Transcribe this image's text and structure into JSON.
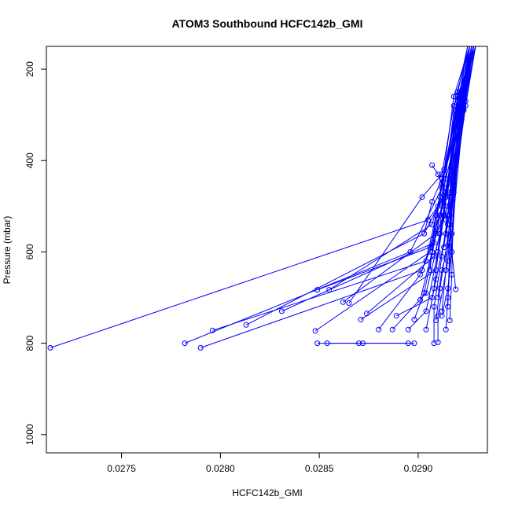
{
  "chart_data": {
    "type": "line",
    "title": "ATOM3 Southbound HCFC142b_GMI",
    "xlabel": "HCFC142b_GMI",
    "ylabel": "Pressure (mbar)",
    "xlim": [
      0.02712,
      0.02935
    ],
    "ylim": [
      1040,
      150
    ],
    "y_reversed": true,
    "x_ticks": [
      "0.0275",
      "0.0280",
      "0.0285",
      "0.0290"
    ],
    "x_tick_values": [
      0.0275,
      0.028,
      0.0285,
      0.029
    ],
    "y_ticks": [
      "200",
      "400",
      "600",
      "800",
      "1000"
    ],
    "y_tick_values": [
      200,
      400,
      600,
      800,
      1000
    ],
    "grid": false,
    "legend": "none",
    "series_color": "#0000ff",
    "series": [
      {
        "x": [
          0.02714,
          0.02905,
          0.02915,
          0.0292,
          0.02925
        ],
        "y": [
          810,
          530,
          470,
          250,
          150
        ]
      },
      {
        "x": [
          0.02782,
          0.02896,
          0.02912,
          0.02918,
          0.02926
        ],
        "y": [
          800,
          600,
          460,
          260,
          150
        ]
      },
      {
        "x": [
          0.0279,
          0.02902,
          0.02914,
          0.02921,
          0.02927
        ],
        "y": [
          810,
          640,
          480,
          280,
          150
        ]
      },
      {
        "x": [
          0.02796,
          0.02904,
          0.0291,
          0.02919,
          0.02927
        ],
        "y": [
          772,
          620,
          500,
          300,
          150
        ]
      },
      {
        "x": [
          0.02813,
          0.02903,
          0.02916,
          0.0292,
          0.02928
        ],
        "y": [
          760,
          560,
          450,
          270,
          150
        ]
      },
      {
        "x": [
          0.02831,
          0.02908,
          0.02912,
          0.02922,
          0.02928
        ],
        "y": [
          730,
          580,
          440,
          290,
          150
        ]
      },
      {
        "x": [
          0.02849,
          0.02906,
          0.02914,
          0.02921,
          0.02926
        ],
        "y": [
          683,
          590,
          470,
          310,
          150
        ]
      },
      {
        "x": [
          0.02855,
          0.02907,
          0.02911,
          0.0292,
          0.02928
        ],
        "y": [
          683,
          540,
          480,
          260,
          150
        ]
      },
      {
        "x": [
          0.02862,
          0.02909,
          0.02915,
          0.02923,
          0.02927
        ],
        "y": [
          710,
          560,
          500,
          240,
          150
        ]
      },
      {
        "x": [
          0.02865,
          0.02902,
          0.02912,
          0.02918,
          0.02929
        ],
        "y": [
          712,
          480,
          430,
          280,
          150
        ]
      },
      {
        "x": [
          0.02848,
          0.02906,
          0.02912,
          0.02921,
          0.02925
        ],
        "y": [
          773,
          600,
          450,
          250,
          150
        ]
      },
      {
        "x": [
          0.02871,
          0.02909,
          0.02913,
          0.0292,
          0.02927
        ],
        "y": [
          748,
          640,
          520,
          300,
          150
        ]
      },
      {
        "x": [
          0.02874,
          0.02908,
          0.02916,
          0.02922,
          0.02928
        ],
        "y": [
          735,
          610,
          480,
          270,
          150
        ]
      },
      {
        "x": [
          0.02849,
          0.0287,
          0.02895
        ],
        "y": [
          800,
          800,
          800
        ]
      },
      {
        "x": [
          0.02854,
          0.02872,
          0.02898
        ],
        "y": [
          800,
          800,
          800
        ]
      },
      {
        "x": [
          0.0288,
          0.02901,
          0.02913,
          0.02919,
          0.02926
        ],
        "y": [
          770,
          650,
          520,
          290,
          150
        ]
      },
      {
        "x": [
          0.02887,
          0.02904,
          0.02911,
          0.0292,
          0.02928
        ],
        "y": [
          770,
          690,
          560,
          300,
          150
        ]
      },
      {
        "x": [
          0.02889,
          0.02907,
          0.02915,
          0.02922,
          0.02927
        ],
        "y": [
          740,
          700,
          540,
          310,
          150
        ]
      },
      {
        "x": [
          0.02895,
          0.02904,
          0.0291,
          0.02921,
          0.02929
        ],
        "y": [
          770,
          730,
          600,
          280,
          150
        ]
      },
      {
        "x": [
          0.02898,
          0.02903,
          0.02912,
          0.02919,
          0.02926
        ],
        "y": [
          748,
          690,
          500,
          260,
          150
        ]
      },
      {
        "x": [
          0.02901,
          0.02907,
          0.02914,
          0.02923,
          0.02928
        ],
        "y": [
          705,
          600,
          460,
          270,
          150
        ]
      },
      {
        "x": [
          0.02904,
          0.02909,
          0.02914,
          0.0292,
          0.02927
        ],
        "y": [
          770,
          660,
          560,
          290,
          150
        ]
      },
      {
        "x": [
          0.02908,
          0.02908,
          0.02912,
          0.02922,
          0.02929
        ],
        "y": [
          800,
          720,
          610,
          300,
          150
        ]
      },
      {
        "x": [
          0.0291,
          0.0291,
          0.02915,
          0.02921,
          0.02927
        ],
        "y": [
          798,
          740,
          620,
          260,
          150
        ]
      },
      {
        "x": [
          0.02909,
          0.02911,
          0.02916,
          0.02923,
          0.02928
        ],
        "y": [
          750,
          680,
          540,
          250,
          150
        ]
      },
      {
        "x": [
          0.02912,
          0.02914,
          0.02917,
          0.02922,
          0.02926
        ],
        "y": [
          730,
          640,
          470,
          280,
          150
        ]
      },
      {
        "x": [
          0.02914,
          0.02915,
          0.02917,
          0.02921,
          0.02928
        ],
        "y": [
          770,
          700,
          560,
          300,
          150
        ]
      },
      {
        "x": [
          0.02916,
          0.02917,
          0.02918,
          0.02924,
          0.02929
        ],
        "y": [
          750,
          650,
          460,
          270,
          150
        ]
      },
      {
        "x": [
          0.02919,
          0.02917,
          0.02916,
          0.02923,
          0.02927
        ],
        "y": [
          682,
          600,
          520,
          290,
          150
        ]
      },
      {
        "x": [
          0.02907,
          0.0291,
          0.02912,
          0.0292,
          0.02926
        ],
        "y": [
          410,
          430,
          450,
          320,
          150
        ]
      },
      {
        "x": [
          0.02908,
          0.02911,
          0.02913,
          0.02921,
          0.02928
        ],
        "y": [
          680,
          560,
          420,
          270,
          150
        ]
      },
      {
        "x": [
          0.02915,
          0.02916,
          0.02918,
          0.02922,
          0.02928
        ],
        "y": [
          720,
          580,
          460,
          300,
          150
        ]
      },
      {
        "x": [
          0.02906,
          0.02909,
          0.02914,
          0.02921,
          0.02927
        ],
        "y": [
          640,
          520,
          440,
          310,
          150
        ]
      },
      {
        "x": [
          0.02911,
          0.02914,
          0.02916,
          0.02923,
          0.02929
        ],
        "y": [
          520,
          470,
          440,
          280,
          150
        ]
      },
      {
        "x": [
          0.02913,
          0.02915,
          0.02918,
          0.02922,
          0.02927
        ],
        "y": [
          590,
          520,
          455,
          260,
          150
        ]
      },
      {
        "x": [
          0.02903,
          0.02907,
          0.02913,
          0.0292,
          0.02926
        ],
        "y": [
          560,
          490,
          430,
          300,
          150
        ]
      },
      {
        "x": [
          0.0291,
          0.02912,
          0.02917,
          0.02923,
          0.02928
        ],
        "y": [
          700,
          640,
          560,
          290,
          150
        ]
      },
      {
        "x": [
          0.02912,
          0.02915,
          0.02917,
          0.02921,
          0.02927
        ],
        "y": [
          740,
          680,
          600,
          310,
          150
        ]
      },
      {
        "x": [
          0.02915,
          0.02914,
          0.02918,
          0.02924,
          0.02929
        ],
        "y": [
          586,
          530,
          470,
          280,
          150
        ]
      }
    ]
  }
}
